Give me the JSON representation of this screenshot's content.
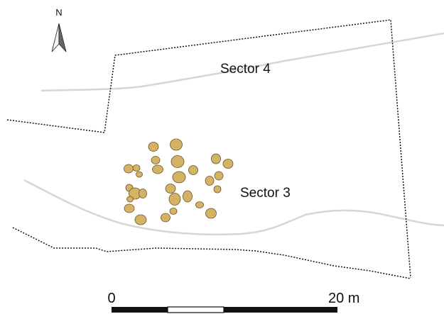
{
  "north": {
    "label": "N"
  },
  "sectors": [
    {
      "label": "Sector 4"
    },
    {
      "label": "Sector 3"
    }
  ],
  "scale_bar": {
    "start_label": "0",
    "end_label": "20 m"
  },
  "colors": {
    "pit_fill": "#d4b266",
    "pit_stroke": "#6a5520",
    "boundary": "#111111",
    "contour": "#d6d6d6"
  }
}
